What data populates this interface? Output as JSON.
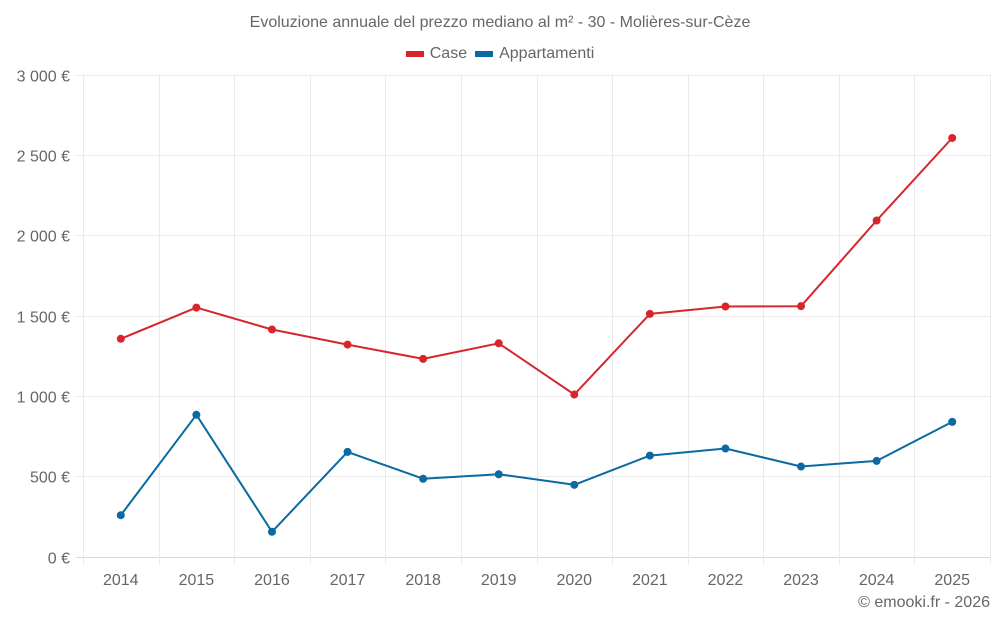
{
  "chart_data": {
    "type": "line",
    "title": "Evoluzione annuale del prezzo mediano al m² - 30 - Molières-sur-Cèze",
    "xlabel": "",
    "ylabel": "",
    "x": [
      "2014",
      "2015",
      "2016",
      "2017",
      "2018",
      "2019",
      "2020",
      "2021",
      "2022",
      "2023",
      "2024",
      "2025"
    ],
    "series": [
      {
        "name": "Case",
        "color": "#d7262b",
        "values": [
          1355,
          1549,
          1413,
          1319,
          1230,
          1327,
          1008,
          1510,
          1556,
          1558,
          2091,
          2605
        ]
      },
      {
        "name": "Appartamenti",
        "color": "#0a6aa1",
        "values": [
          257,
          882,
          154,
          651,
          484,
          512,
          446,
          628,
          672,
          560,
          595,
          838
        ]
      }
    ],
    "ylim": [
      0,
      3000
    ],
    "yticks": [
      0,
      500,
      1000,
      1500,
      2000,
      2500,
      3000
    ],
    "ytick_labels": [
      "0 €",
      "500 €",
      "1 000 €",
      "1 500 €",
      "2 000 €",
      "2 500 €",
      "3 000 €"
    ],
    "grid": true,
    "legend_position": "top-center"
  },
  "footer": {
    "credit": "© emooki.fr - 2026"
  }
}
